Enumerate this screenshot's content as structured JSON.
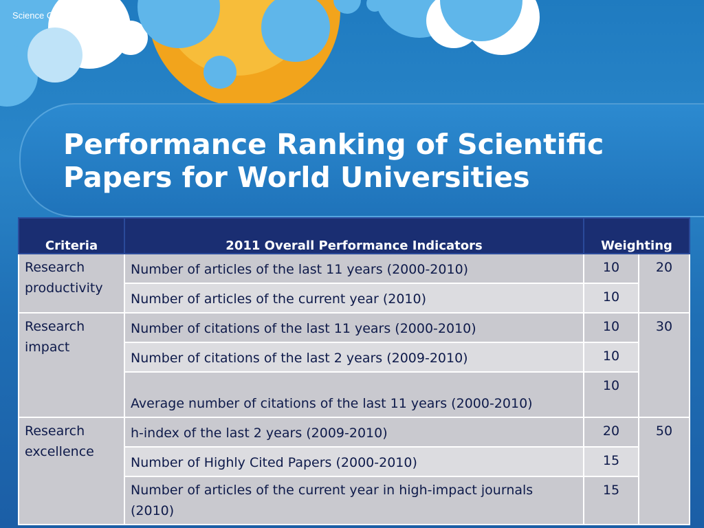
{
  "header_note": "Science Online - 2013",
  "title_line1": "Performance Ranking of Scientific",
  "title_line2": "Papers for World Universities",
  "table": {
    "headers": {
      "criteria": "Criteria",
      "indicators": "2011 Overall Performance Indicators",
      "weighting": "Weighting"
    },
    "groups": [
      {
        "criteria": "Research productivity",
        "total": "20",
        "rows": [
          {
            "indicator": "Number of articles of the last 11 years (2000-2010)",
            "weight": "10"
          },
          {
            "indicator": "Number of articles of the current year (2010)",
            "weight": "10"
          }
        ]
      },
      {
        "criteria": "Research impact",
        "total": "30",
        "rows": [
          {
            "indicator": "Number of citations of the last 11 years (2000-2010)",
            "weight": "10"
          },
          {
            "indicator": "Number of citations of the last 2 years (2009-2010)",
            "weight": "10"
          },
          {
            "indicator": "Average number of citations of the last 11 years (2000-2010)",
            "weight": "10"
          }
        ]
      },
      {
        "criteria": "Research excellence",
        "total": "50",
        "rows": [
          {
            "indicator": "h-index of the last 2 years (2009-2010)",
            "weight": "20"
          },
          {
            "indicator": "Number of Highly Cited Papers (2000-2010)",
            "weight": "15"
          },
          {
            "indicator": "Number of articles of the current year in high-impact journals (2010)",
            "weight": "15"
          }
        ]
      }
    ]
  }
}
